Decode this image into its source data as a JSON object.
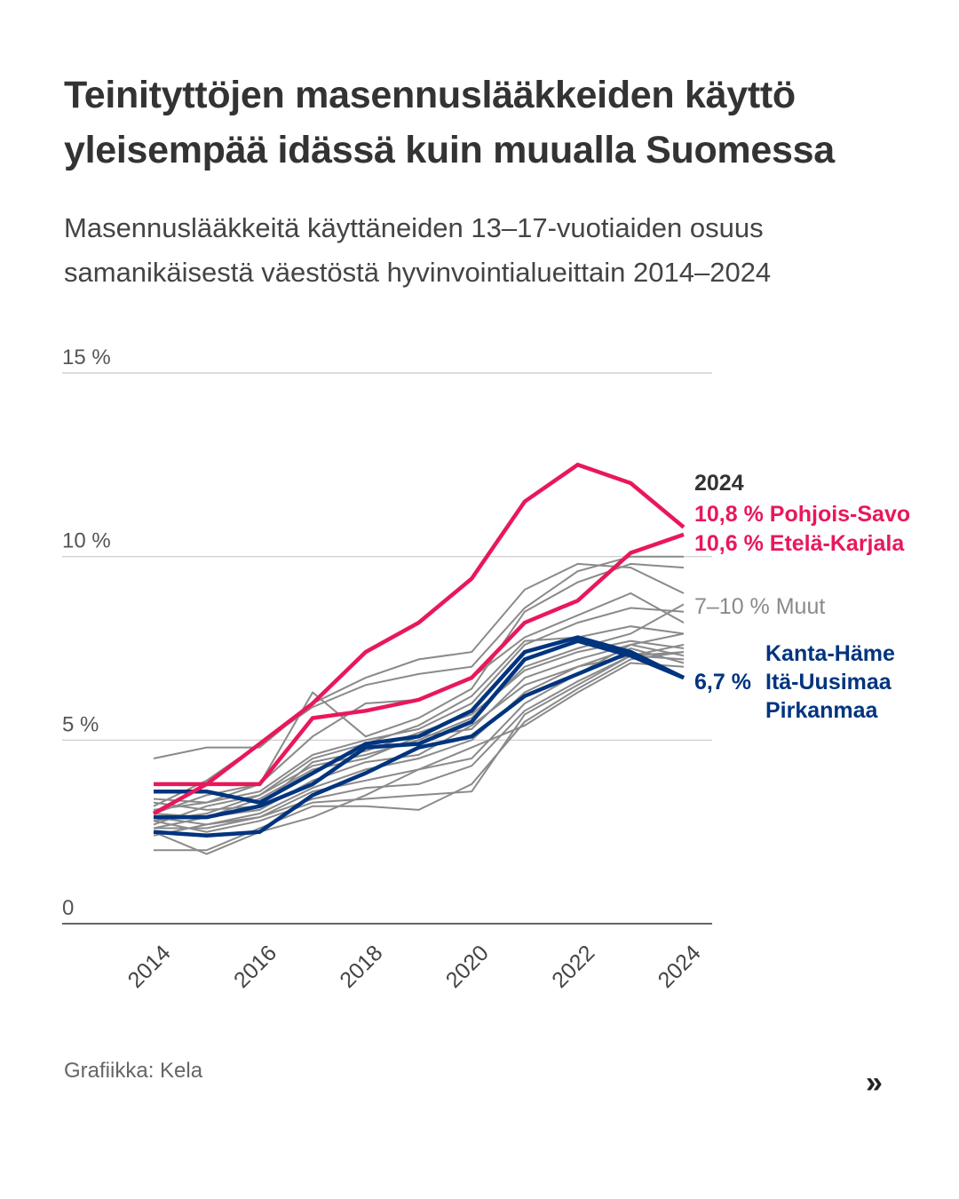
{
  "header": {
    "title": "Teinityttöjen masennuslääkkeiden käyttö yleisempää idässä kuin muualla Suomessa",
    "subtitle": "Masennuslääkkeitä käyttäneiden 13–17-vuotiaiden osuus samanikäisestä väestöstä hyvinvointialueittain 2014–2024"
  },
  "footer": {
    "credit": "Grafiikka: Kela",
    "next_icon": "»"
  },
  "colors": {
    "pink": "#e8185a",
    "blue": "#00347f",
    "gray": "#8a8a8a",
    "grid": "#c8c8c8",
    "axis": "#666666",
    "label_dark": "#333333"
  },
  "chart_data": {
    "type": "line",
    "title": "Masennuslääkkeitä käyttäneiden 13–17-vuotiaiden osuus samanikäisestä väestöstä hyvinvointialueittain 2014–2024",
    "xlabel": "",
    "ylabel": "",
    "x": [
      2014,
      2015,
      2016,
      2017,
      2018,
      2019,
      2020,
      2021,
      2022,
      2023,
      2024
    ],
    "xticks": [
      "2014",
      "2016",
      "2018",
      "2020",
      "2022",
      "2024"
    ],
    "xtick_values": [
      2014,
      2016,
      2018,
      2020,
      2022,
      2024
    ],
    "ylim": [
      0,
      15
    ],
    "yticks": [
      0,
      5,
      10,
      15
    ],
    "ytick_labels": [
      "0",
      "5 %",
      "10 %",
      "15 %"
    ],
    "grid": true,
    "legend": "direct labels at right",
    "annotations": {
      "year": "2024",
      "pink_labels": [
        "10,8 % Pohjois-Savo",
        "10,6 % Etelä-Karjala"
      ],
      "gray_label": "7–10 % Muut",
      "blue_value": "6,7 %",
      "blue_names": [
        "Kanta-Häme",
        "Itä-Uusimaa",
        "Pirkanmaa"
      ]
    },
    "series": [
      {
        "name": "Pohjois-Savo",
        "group": "pink",
        "values": [
          3.0,
          3.8,
          4.9,
          6.0,
          7.4,
          8.2,
          9.4,
          11.5,
          12.5,
          12.0,
          10.8
        ]
      },
      {
        "name": "Etelä-Karjala",
        "group": "pink",
        "values": [
          3.8,
          3.8,
          3.8,
          5.6,
          5.8,
          6.1,
          6.7,
          8.2,
          8.8,
          10.1,
          10.6
        ]
      },
      {
        "name": "Kanta-Häme",
        "group": "blue",
        "values": [
          3.6,
          3.6,
          3.3,
          4.1,
          4.9,
          5.1,
          5.8,
          7.4,
          7.8,
          7.4,
          6.7
        ]
      },
      {
        "name": "Itä-Uusimaa",
        "group": "blue",
        "values": [
          2.9,
          2.9,
          3.2,
          3.8,
          4.8,
          4.9,
          5.5,
          7.2,
          7.7,
          7.3,
          6.7
        ]
      },
      {
        "name": "Pirkanmaa",
        "group": "blue",
        "values": [
          2.5,
          2.4,
          2.5,
          3.5,
          4.1,
          4.8,
          5.1,
          6.2,
          6.8,
          7.4,
          6.7
        ]
      },
      {
        "name": "Muut 1",
        "group": "gray",
        "values": [
          4.5,
          4.8,
          4.8,
          6.0,
          6.7,
          7.2,
          7.4,
          9.1,
          9.8,
          9.7,
          9.0
        ]
      },
      {
        "name": "Muut 2",
        "group": "gray",
        "values": [
          3.2,
          3.9,
          4.9,
          5.9,
          6.5,
          6.8,
          7.0,
          8.6,
          9.6,
          10.0,
          10.0
        ]
      },
      {
        "name": "Muut 3",
        "group": "gray",
        "values": [
          3.4,
          3.3,
          3.8,
          6.3,
          5.1,
          5.6,
          6.4,
          8.5,
          9.3,
          9.8,
          9.7
        ]
      },
      {
        "name": "Muut 4",
        "group": "gray",
        "values": [
          3.0,
          3.5,
          3.8,
          5.1,
          6.0,
          6.1,
          6.7,
          7.8,
          8.4,
          9.0,
          8.2
        ]
      },
      {
        "name": "Muut 5",
        "group": "gray",
        "values": [
          3.1,
          3.3,
          3.6,
          4.6,
          5.0,
          5.3,
          6.0,
          7.6,
          8.2,
          8.6,
          8.5
        ]
      },
      {
        "name": "Muut 6",
        "group": "gray",
        "values": [
          2.8,
          3.0,
          3.5,
          4.5,
          4.9,
          5.4,
          6.2,
          7.7,
          7.8,
          8.1,
          7.9
        ]
      },
      {
        "name": "Muut 7",
        "group": "gray",
        "values": [
          2.7,
          3.2,
          3.5,
          4.3,
          4.6,
          5.0,
          5.6,
          7.0,
          7.5,
          7.9,
          8.7
        ]
      },
      {
        "name": "Muut 8",
        "group": "gray",
        "values": [
          3.3,
          3.1,
          3.2,
          4.4,
          4.7,
          5.2,
          5.7,
          6.9,
          7.4,
          7.7,
          7.5
        ]
      },
      {
        "name": "Muut 9",
        "group": "gray",
        "values": [
          2.6,
          2.9,
          3.4,
          4.2,
          4.5,
          5.1,
          5.3,
          6.7,
          7.2,
          7.6,
          7.3
        ]
      },
      {
        "name": "Muut 10",
        "group": "gray",
        "values": [
          3.0,
          2.9,
          3.1,
          3.9,
          4.4,
          4.6,
          5.4,
          6.5,
          7.0,
          7.5,
          7.1
        ]
      },
      {
        "name": "Muut 11",
        "group": "gray",
        "values": [
          2.9,
          2.7,
          3.0,
          3.7,
          4.2,
          4.5,
          5.0,
          6.3,
          7.0,
          7.3,
          7.4
        ]
      },
      {
        "name": "Muut 12",
        "group": "gray",
        "values": [
          2.6,
          2.6,
          2.9,
          3.6,
          3.9,
          4.2,
          4.5,
          6.0,
          6.8,
          7.6,
          7.9
        ]
      },
      {
        "name": "Muut 13",
        "group": "gray",
        "values": [
          2.4,
          2.7,
          2.9,
          3.4,
          3.7,
          3.8,
          4.3,
          5.8,
          6.6,
          7.3,
          7.2
        ]
      },
      {
        "name": "Muut 14",
        "group": "gray",
        "values": [
          2.8,
          2.5,
          2.8,
          3.3,
          3.4,
          3.5,
          3.6,
          5.7,
          6.5,
          7.3,
          7.6
        ]
      },
      {
        "name": "Muut 15",
        "group": "gray",
        "values": [
          2.0,
          2.0,
          2.6,
          3.2,
          3.2,
          3.1,
          3.8,
          5.5,
          6.4,
          7.2,
          7.4
        ]
      },
      {
        "name": "Muut 16",
        "group": "gray",
        "values": [
          2.5,
          1.9,
          2.5,
          2.9,
          3.5,
          4.2,
          4.8,
          5.4,
          6.3,
          7.1,
          7.0
        ]
      }
    ]
  }
}
